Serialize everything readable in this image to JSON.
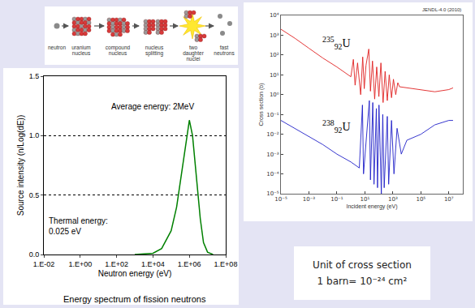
{
  "diagram": {
    "labels": [
      "neutron",
      "uranium nucleus",
      "compound nucleus",
      "nucleus splitting",
      "two daughter nuclei",
      "fast neutrons"
    ]
  },
  "chart_data": [
    {
      "type": "line",
      "caption": "Energy spectrum of fission neutrons",
      "x_label": "Neutron energy (eV)",
      "y_label": "Source intensity (n/Log(dE))",
      "log": "x",
      "x": [
        1000,
        10000,
        30000,
        100000,
        200000,
        400000,
        700000,
        1000000,
        1500000,
        2500000,
        4000000,
        6000000,
        10000000,
        20000000
      ],
      "values": [
        0,
        0.01,
        0.05,
        0.2,
        0.4,
        0.72,
        1.0,
        1.13,
        1.0,
        0.65,
        0.3,
        0.1,
        0.02,
        0
      ],
      "color": "#008000",
      "line_style": "solid",
      "xlim": [
        0.01,
        100000000
      ],
      "xticks": [
        {
          "value": 0.01,
          "label": "1.E-02"
        },
        {
          "value": 1,
          "label": "1.E+00"
        },
        {
          "value": 100,
          "label": "1.E+02"
        },
        {
          "value": 10000,
          "label": "1.E+04"
        },
        {
          "value": 1000000,
          "label": "1.E+06"
        },
        {
          "value": 100000000,
          "label": "1.E+08"
        }
      ],
      "ylim": [
        0,
        1.5
      ],
      "yticks": [
        {
          "value": 0,
          "label": "0.0"
        },
        {
          "value": 0.5,
          "label": "0.5"
        },
        {
          "value": 1,
          "label": "1.0"
        },
        {
          "value": 1.5,
          "label": "1.5"
        }
      ],
      "grid": true,
      "annotations": [
        "Average energy: 2MeV",
        "Thermal energy:\n0.025 eV"
      ]
    },
    {
      "type": "line",
      "title": "JENDL-4.0 (2010)",
      "x_label": "Incident energy (eV)",
      "y_label": "Cross section (b)",
      "log": true,
      "grid": false,
      "xlim": [
        1e-05,
        100000000
      ],
      "xticks": [
        {
          "value": 1e-05,
          "label": "10⁻⁵"
        },
        {
          "value": 0.001,
          "label": "10⁻³"
        },
        {
          "value": 0.1,
          "label": "10⁻¹"
        },
        {
          "value": 10,
          "label": "10¹"
        },
        {
          "value": 1000,
          "label": "10³"
        },
        {
          "value": 100000,
          "label": "10⁵"
        },
        {
          "value": 10000000,
          "label": "10⁷"
        }
      ],
      "ylim": [
        1e-05,
        10000
      ],
      "yticks": [
        {
          "value": 1e-05,
          "label": "10⁻⁵"
        },
        {
          "value": 0.0001,
          "label": "10⁻⁴"
        },
        {
          "value": 0.001,
          "label": "10⁻³"
        },
        {
          "value": 0.01,
          "label": "10⁻²"
        },
        {
          "value": 0.1,
          "label": "10⁻¹"
        },
        {
          "value": 1,
          "label": "10⁰"
        },
        {
          "value": 10,
          "label": "10¹"
        },
        {
          "value": 100,
          "label": "10²"
        },
        {
          "value": 1000,
          "label": "10³"
        },
        {
          "value": 10000,
          "label": "10⁴"
        }
      ],
      "series": [
        {
          "label": {
            "mass": "235",
            "atomic_number": "92",
            "symbol": "U"
          },
          "color": "#e02020",
          "x": [
            1e-05,
            0.0001,
            0.001,
            0.01,
            0.1,
            0.3,
            1,
            1.5,
            2,
            3,
            5,
            7,
            9,
            12,
            19,
            25,
            35,
            50,
            70,
            100,
            140,
            200,
            280,
            400,
            550,
            800,
            1100,
            1600,
            2250,
            3000,
            10000,
            100000,
            1000000,
            10000000,
            20000000
          ],
          "values": [
            2000,
            700,
            220,
            70,
            25,
            15,
            8,
            60,
            3,
            40,
            1,
            80,
            2,
            30,
            200,
            1.5,
            50,
            0.6,
            25,
            0.8,
            40,
            0.4,
            15,
            0.5,
            10,
            0.7,
            6,
            1,
            4,
            2.5,
            2.2,
            1.8,
            1.4,
            1.8,
            2.2
          ]
        },
        {
          "label": {
            "mass": "238",
            "atomic_number": "92",
            "symbol": "U"
          },
          "color": "#2020c8",
          "x": [
            1e-05,
            0.0001,
            0.001,
            0.01,
            0.1,
            1,
            4,
            6.7,
            8,
            20.9,
            25,
            36.7,
            45,
            66,
            80,
            102,
            150,
            190,
            240,
            400,
            500,
            800,
            1200,
            2000,
            4000,
            10000,
            100000,
            1000000,
            10000000,
            20000000
          ],
          "values": [
            0.05,
            0.02,
            0.008,
            0.003,
            0.001,
            0.0004,
            0.0002,
            0.3,
            0.0001,
            0.5,
            5e-05,
            0.4,
            3e-05,
            0.2,
            2e-05,
            0.3,
            1e-05,
            0.1,
            2e-05,
            0.08,
            3e-05,
            0.05,
            0.0001,
            0.02,
            0.001,
            0.005,
            0.01,
            0.03,
            0.05,
            0.05
          ]
        }
      ]
    }
  ],
  "note": {
    "lines": [
      "Unit of cross section",
      "1 barn= 10⁻²⁴ cm²"
    ]
  }
}
